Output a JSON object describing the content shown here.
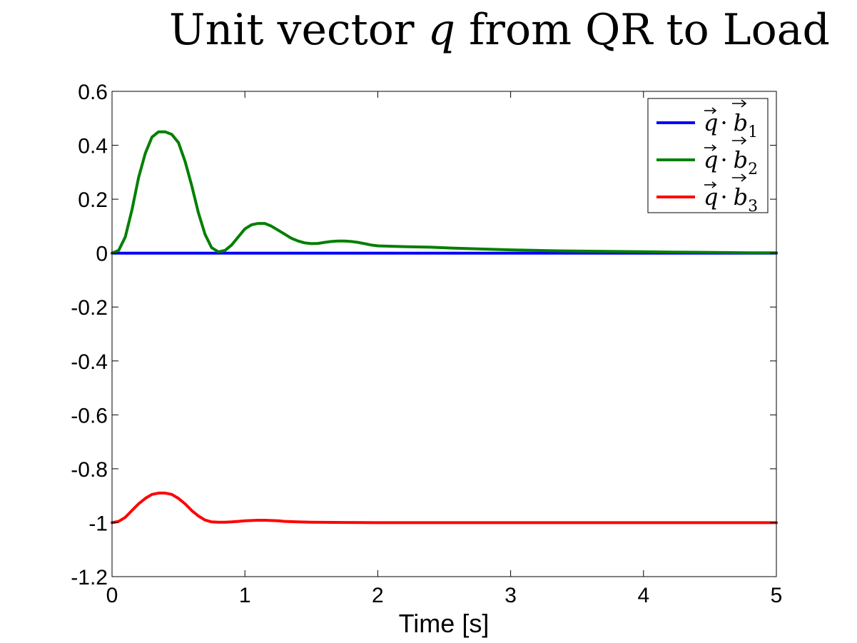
{
  "chart_data": {
    "type": "line",
    "title": "Unit vector q from QR to Load",
    "title_parts": {
      "prefix": "Unit vector ",
      "symbol": "q",
      "suffix": " from QR to Load"
    },
    "xlabel": "Time [s]",
    "ylabel": "",
    "xlim": [
      0,
      5
    ],
    "ylim": [
      -1.2,
      0.6
    ],
    "xticks": [
      0,
      1,
      2,
      3,
      4,
      5
    ],
    "yticks": [
      0.6,
      0.4,
      0.2,
      0,
      -0.2,
      -0.4,
      -0.6,
      -0.8,
      -1,
      -1.2
    ],
    "xtick_labels": [
      "0",
      "1",
      "2",
      "3",
      "4",
      "5"
    ],
    "ytick_labels": [
      "0.6",
      "0.4",
      "0.2",
      "0",
      "-0.2",
      "-0.4",
      "-0.6",
      "-0.8",
      "-1",
      "-1.2"
    ],
    "grid": false,
    "legend_position": "top-right",
    "series": [
      {
        "name": "q·b1",
        "legend_sub": "1",
        "color": "#0000ff",
        "x": [
          0,
          0.5,
          1,
          1.5,
          2,
          2.5,
          3,
          3.5,
          4,
          4.5,
          5
        ],
        "y": [
          0,
          0,
          0,
          0,
          0,
          0,
          0,
          0,
          0,
          0,
          0
        ]
      },
      {
        "name": "q·b2",
        "legend_sub": "2",
        "color": "#007f00",
        "x": [
          0,
          0.05,
          0.1,
          0.15,
          0.2,
          0.25,
          0.3,
          0.35,
          0.4,
          0.45,
          0.5,
          0.55,
          0.6,
          0.65,
          0.7,
          0.75,
          0.8,
          0.85,
          0.9,
          0.95,
          1.0,
          1.05,
          1.1,
          1.15,
          1.2,
          1.25,
          1.3,
          1.35,
          1.4,
          1.45,
          1.5,
          1.55,
          1.6,
          1.65,
          1.7,
          1.75,
          1.8,
          1.85,
          1.9,
          1.95,
          2.0,
          2.2,
          2.4,
          2.6,
          2.8,
          3.0,
          3.2,
          3.4,
          3.6,
          3.8,
          4.0,
          4.2,
          4.4,
          4.6,
          4.8,
          5.0
        ],
        "y": [
          0,
          0.01,
          0.06,
          0.16,
          0.28,
          0.37,
          0.43,
          0.45,
          0.45,
          0.44,
          0.41,
          0.34,
          0.25,
          0.15,
          0.07,
          0.02,
          0.005,
          0.01,
          0.03,
          0.06,
          0.09,
          0.105,
          0.11,
          0.11,
          0.1,
          0.085,
          0.07,
          0.055,
          0.045,
          0.038,
          0.035,
          0.036,
          0.04,
          0.043,
          0.045,
          0.045,
          0.043,
          0.04,
          0.035,
          0.03,
          0.027,
          0.024,
          0.022,
          0.018,
          0.015,
          0.012,
          0.01,
          0.008,
          0.007,
          0.006,
          0.005,
          0.004,
          0.003,
          0.002,
          0.001,
          0.001
        ]
      },
      {
        "name": "q·b3",
        "legend_sub": "3",
        "color": "#ff0000",
        "x": [
          0,
          0.05,
          0.1,
          0.15,
          0.2,
          0.25,
          0.3,
          0.35,
          0.4,
          0.45,
          0.5,
          0.55,
          0.6,
          0.65,
          0.7,
          0.75,
          0.8,
          0.85,
          0.9,
          0.95,
          1.0,
          1.05,
          1.1,
          1.15,
          1.2,
          1.25,
          1.3,
          1.4,
          1.5,
          1.75,
          2.0,
          2.5,
          3.0,
          3.5,
          4.0,
          4.5,
          5.0
        ],
        "y": [
          -1.0,
          -0.995,
          -0.98,
          -0.955,
          -0.93,
          -0.91,
          -0.895,
          -0.89,
          -0.89,
          -0.895,
          -0.91,
          -0.93,
          -0.955,
          -0.975,
          -0.99,
          -0.997,
          -0.998,
          -0.998,
          -0.997,
          -0.995,
          -0.993,
          -0.992,
          -0.991,
          -0.991,
          -0.992,
          -0.993,
          -0.995,
          -0.997,
          -0.998,
          -0.999,
          -1.0,
          -1.0,
          -1.0,
          -1.0,
          -1.0,
          -1.0,
          -1.0
        ]
      }
    ]
  }
}
